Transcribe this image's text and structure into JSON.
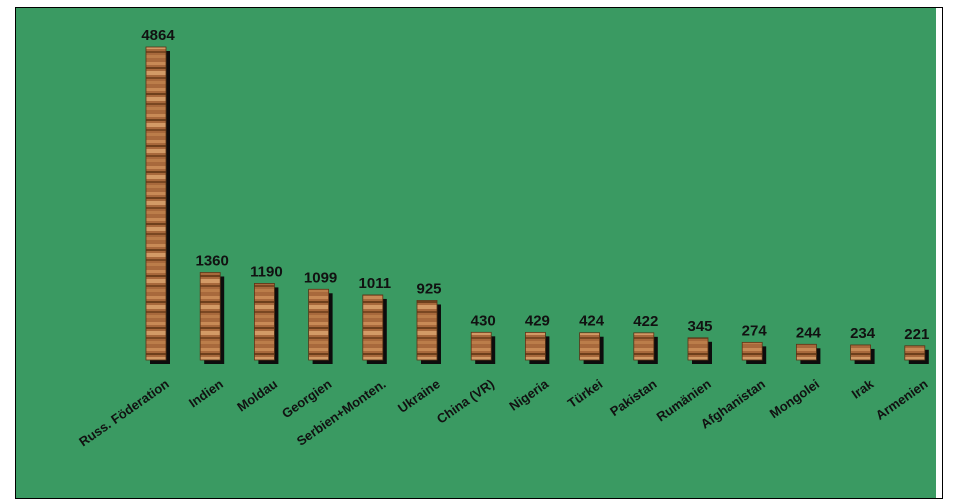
{
  "chart_data": {
    "type": "bar",
    "categories": [
      "Russ. Föderation",
      "Indien",
      "Moldau",
      "Georgien",
      "Serbien+Monten.",
      "Ukraine",
      "China (VR)",
      "Nigeria",
      "Türkei",
      "Pakistan",
      "Rumänien",
      "Afghanistan",
      "Mongolei",
      "Irak",
      "Armenien"
    ],
    "values": [
      4864,
      1360,
      1190,
      1099,
      1011,
      925,
      430,
      429,
      424,
      422,
      345,
      274,
      244,
      234,
      221
    ],
    "value_labels": [
      "4864",
      "1360",
      "1190",
      "1099",
      "1011",
      "925",
      "430",
      "429",
      "424",
      "422",
      "345",
      "274",
      "244",
      "234",
      "221"
    ],
    "ylim": [
      0,
      4864
    ],
    "grid": false,
    "colors": {
      "background": "#3a9a62",
      "bar": "#a0663a",
      "bar_shadow": "#0d0d0d",
      "text": "#111111"
    }
  }
}
